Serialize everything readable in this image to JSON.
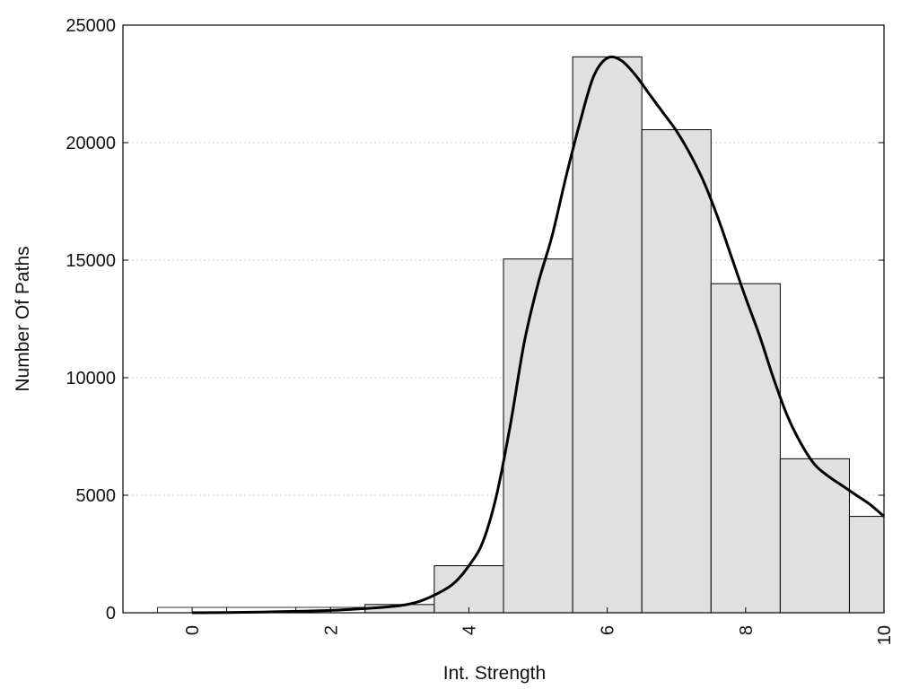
{
  "chart_data": {
    "type": "bar",
    "title": "",
    "xlabel": "Int. Strength",
    "ylabel": "Number Of Paths",
    "xlim": [
      -1,
      10
    ],
    "ylim": [
      0,
      25000
    ],
    "x_ticks": [
      0,
      2,
      4,
      6,
      8,
      10
    ],
    "x_tick_labels": [
      "0",
      "2",
      "4",
      "6",
      "8",
      "10"
    ],
    "y_ticks": [
      0,
      5000,
      10000,
      15000,
      20000,
      25000
    ],
    "y_tick_labels": [
      "0",
      "5000",
      "10000",
      "15000",
      "20000",
      "25000"
    ],
    "grid": "horizontal-dotted",
    "bar_color": "#e0e0e0",
    "edge_color": "#000000",
    "line_color": "#000000",
    "bins": [
      {
        "x0": -0.5,
        "x1": 0.5,
        "value": 0
      },
      {
        "x0": 0.5,
        "x1": 1.5,
        "value": 0
      },
      {
        "x0": 1.5,
        "x1": 2.5,
        "value": 0
      },
      {
        "x0": 2.5,
        "x1": 3.5,
        "value": 350
      },
      {
        "x0": 3.5,
        "x1": 4.5,
        "value": 2000
      },
      {
        "x0": 4.5,
        "x1": 5.5,
        "value": 15050
      },
      {
        "x0": 5.5,
        "x1": 6.5,
        "value": 23650
      },
      {
        "x0": 6.5,
        "x1": 7.5,
        "value": 20550
      },
      {
        "x0": 7.5,
        "x1": 8.5,
        "value": 14000
      },
      {
        "x0": 8.5,
        "x1": 9.5,
        "value": 6550
      },
      {
        "x0": 9.5,
        "x1": 10,
        "value": 4100
      }
    ],
    "curve": {
      "x": [
        0,
        0.5,
        1,
        1.5,
        2,
        2.5,
        3,
        3.3,
        3.6,
        3.8,
        4,
        4.2,
        4.4,
        4.6,
        4.8,
        5,
        5.2,
        5.4,
        5.6,
        5.8,
        6,
        6.2,
        6.4,
        6.6,
        6.8,
        7,
        7.2,
        7.4,
        7.6,
        7.8,
        8,
        8.2,
        8.4,
        8.6,
        8.8,
        9,
        9.2,
        9.4,
        9.6,
        9.8,
        10
      ],
      "y": [
        0,
        10,
        30,
        60,
        100,
        180,
        300,
        500,
        900,
        1300,
        2000,
        3000,
        5000,
        8000,
        11500,
        14000,
        16000,
        18500,
        20800,
        22800,
        23600,
        23500,
        22900,
        22100,
        21300,
        20500,
        19500,
        18300,
        16800,
        15100,
        13400,
        11800,
        10000,
        8400,
        7200,
        6300,
        5800,
        5400,
        5000,
        4600,
        4100
      ]
    }
  }
}
